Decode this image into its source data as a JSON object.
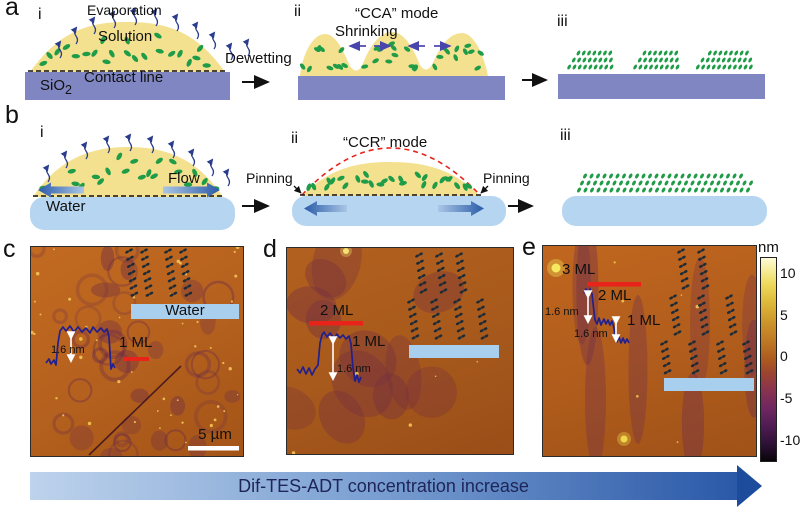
{
  "colors": {
    "droplet": "#F4E18F",
    "substrate": "#8086C2",
    "water": "#B5D5F0",
    "molecule": "#1F9C47",
    "inset_molecule": "#1D2B36",
    "profile_line": "#20208F",
    "marker_red": "#E8231A",
    "evaporation_arrow": "#2A3C8C",
    "shrink_arrow": "#4845AD",
    "flow_arrow_dark": "#2B5BA8",
    "flow_arrow_light": "#A9C6E6"
  },
  "panel_a": {
    "label": "a",
    "step_i": {
      "label": "i",
      "evaporation": "Evaporation",
      "solution": "Solution",
      "contact_line": "Contact line",
      "substrate": "SiO",
      "substrate_sub": "2"
    },
    "transition": "Dewetting",
    "step_ii": {
      "label": "ii",
      "mode": "“CCA” mode",
      "shrinking": "Shrinking"
    },
    "step_iii": {
      "label": "iii"
    }
  },
  "panel_b": {
    "label": "b",
    "step_i": {
      "label": "i",
      "flow": "Flow",
      "water": "Water"
    },
    "step_ii": {
      "label": "ii",
      "mode": "“CCR” mode",
      "pinning_left": "Pinning",
      "pinning_right": "Pinning"
    },
    "step_iii": {
      "label": "iii"
    }
  },
  "panel_c": {
    "label": "c",
    "inset_water": "Water",
    "height": "1.6 nm",
    "monolayer": "1 ML",
    "scale_bar": "5 µm"
  },
  "panel_d": {
    "label": "d",
    "bilayer": "2 ML",
    "monolayer": "1 ML",
    "height": "1.6 nm"
  },
  "panel_e": {
    "label": "e",
    "trilayer": "3 ML",
    "bilayer": "2 ML",
    "monolayer": "1 ML",
    "height_top": "1.6 nm",
    "height_bottom": "1.6 nm"
  },
  "colorbar": {
    "unit": "nm",
    "ticks": [
      "10",
      "5",
      "0",
      "-5",
      "-10"
    ]
  },
  "bottom_arrow": {
    "text": "Dif-TES-ADT concentration increase"
  }
}
